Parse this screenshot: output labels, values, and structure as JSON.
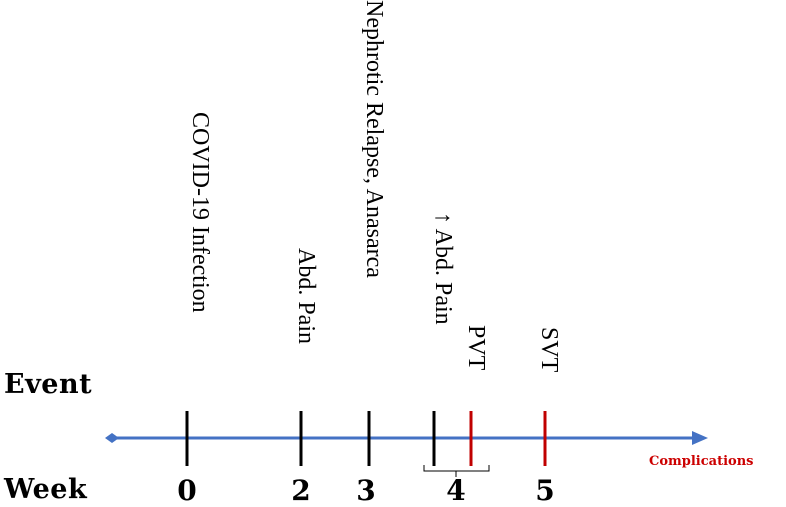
{
  "row_labels": {
    "event": "Event",
    "week": "Week"
  },
  "events": [
    {
      "label": "COVID-19 Infection",
      "color": "#000000"
    },
    {
      "label": "Abd. Pain",
      "color": "#000000"
    },
    {
      "label": "Nephrotic Relapse, Anasarca",
      "color": "#000000"
    },
    {
      "label": "↑ Abd. Pain",
      "color": "#000000"
    },
    {
      "label": "PVT",
      "color": "#c00000"
    },
    {
      "label": "SVT",
      "color": "#c00000"
    }
  ],
  "weeks": [
    "0",
    "2",
    "3",
    "4",
    "5"
  ],
  "complications": {
    "label": "Complications",
    "color": "#cc0000"
  },
  "colors": {
    "axis": "#4472c4",
    "event_tick": "#000000",
    "complication_tick": "#c00000"
  }
}
